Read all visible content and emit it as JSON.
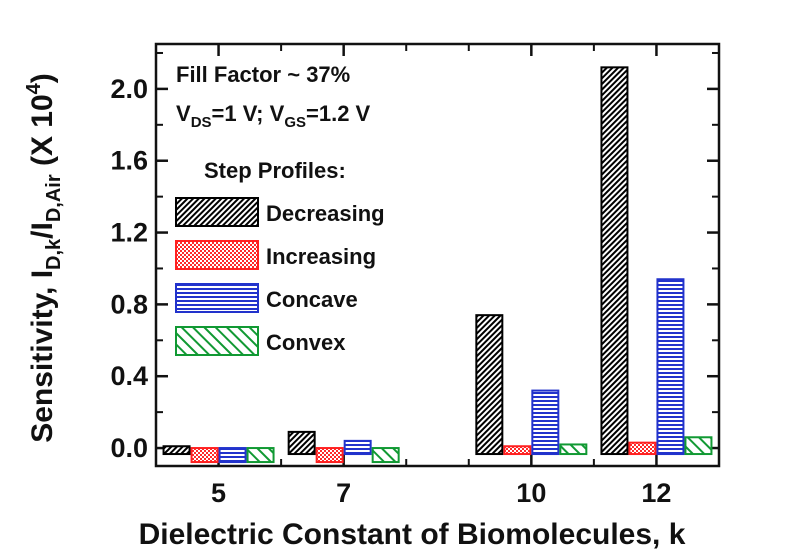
{
  "chart_data": {
    "type": "bar",
    "xlabel": "Dielectric Constant of Biomolecules, k",
    "ylabel": {
      "main": "Sensitivity, I",
      "sub1": "D,k",
      "slash": "/I",
      "sub2": "D,Air",
      "unit_pre": " (X 10",
      "unit_exp": "4",
      "unit_post": ")"
    },
    "categories": [
      "5",
      "7",
      "10",
      "12"
    ],
    "x_values": [
      5,
      7,
      10,
      12
    ],
    "ylim": [
      -0.1,
      2.25
    ],
    "yticks": [
      "0.0",
      "0.4",
      "0.8",
      "1.2",
      "1.6",
      "2.0"
    ],
    "ytick_values": [
      0.0,
      0.4,
      0.8,
      1.2,
      1.6,
      2.0
    ],
    "series": [
      {
        "name": "Decreasing",
        "values": [
          0.01,
          0.09,
          0.74,
          2.12
        ],
        "color": "#000000",
        "pattern": "dense-diagonal"
      },
      {
        "name": "Increasing",
        "values": [
          0.0,
          0.0,
          0.01,
          0.03
        ],
        "color": "#ff2020",
        "pattern": "crosshatch"
      },
      {
        "name": "Concave",
        "values": [
          0.0,
          0.04,
          0.32,
          0.94
        ],
        "color": "#2233cc",
        "pattern": "horizontal"
      },
      {
        "name": "Convex",
        "values": [
          0.0,
          0.0,
          0.02,
          0.06
        ],
        "color": "#119933",
        "pattern": "diagonal"
      }
    ],
    "annotations": {
      "fill_factor": "Fill Factor ~ 37%",
      "bias": {
        "v": "V",
        "ds": "DS",
        "ds_val": "=1 V; V",
        "gs": "GS",
        "gs_val": "=1.2 V"
      },
      "legend_title": "Step Profiles:"
    },
    "legend_position": "upper-left",
    "grid": false
  }
}
